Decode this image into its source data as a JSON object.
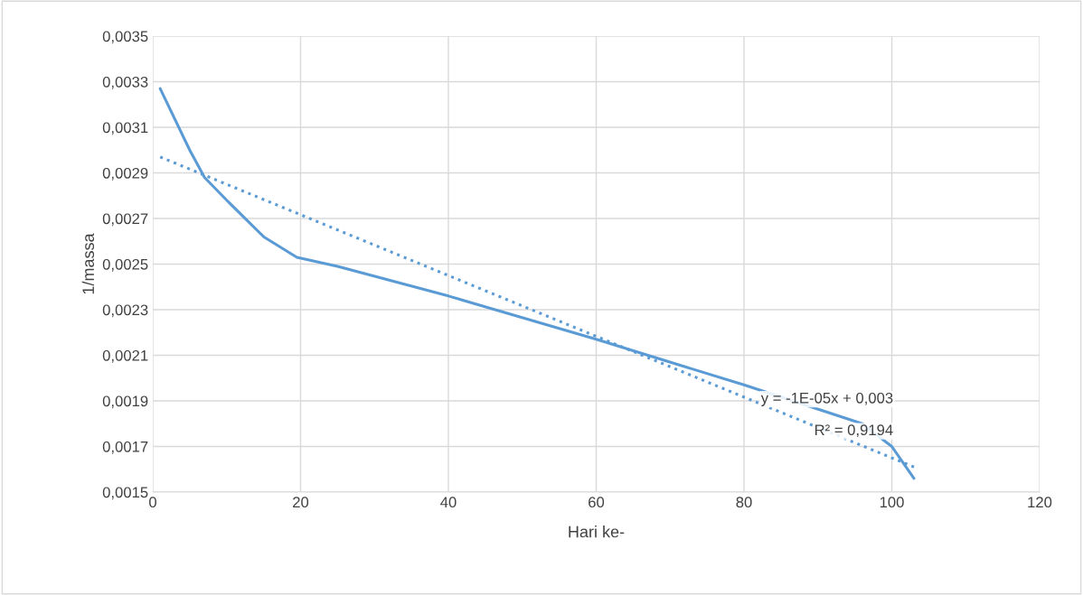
{
  "chart_data": {
    "type": "line",
    "xlabel": "Hari ke-",
    "ylabel": "1/massa",
    "xlim": [
      0,
      120
    ],
    "xticks": [
      0,
      20,
      40,
      60,
      80,
      100,
      120
    ],
    "ylim": [
      0.0015,
      0.0035
    ],
    "yticks": [
      {
        "value": 0.0015,
        "label": "0,0015"
      },
      {
        "value": 0.0017,
        "label": "0,0017"
      },
      {
        "value": 0.0019,
        "label": "0,0019"
      },
      {
        "value": 0.0021,
        "label": "0,0021"
      },
      {
        "value": 0.0023,
        "label": "0,0023"
      },
      {
        "value": 0.0025,
        "label": "0,0025"
      },
      {
        "value": 0.0027,
        "label": "0,0027"
      },
      {
        "value": 0.0029,
        "label": "0,0029"
      },
      {
        "value": 0.0031,
        "label": "0,0031"
      },
      {
        "value": 0.0033,
        "label": "0,0033"
      },
      {
        "value": 0.0035,
        "label": "0,0035"
      }
    ],
    "grid": true,
    "legend": false,
    "marker": "none",
    "series": [
      {
        "color": "#5b9bd5",
        "line_style": "solid",
        "x": [
          1,
          5,
          7,
          10,
          15,
          19.5,
          25,
          40,
          60,
          80,
          96,
          100,
          103
        ],
        "values": [
          0.00327,
          0.003,
          0.00288,
          0.00278,
          0.00262,
          0.00253,
          0.00249,
          0.00236,
          0.00217,
          0.00197,
          0.0018,
          0.0017,
          0.00156
        ]
      },
      {
        "type": "line",
        "color": "#5b9bd5",
        "line_style": "dotted",
        "x": [
          1,
          103
        ],
        "values": [
          0.00297,
          0.00161
        ]
      }
    ],
    "annotations": [
      "y = -1E-05x + 0,003",
      "R² = 0,9194"
    ]
  }
}
